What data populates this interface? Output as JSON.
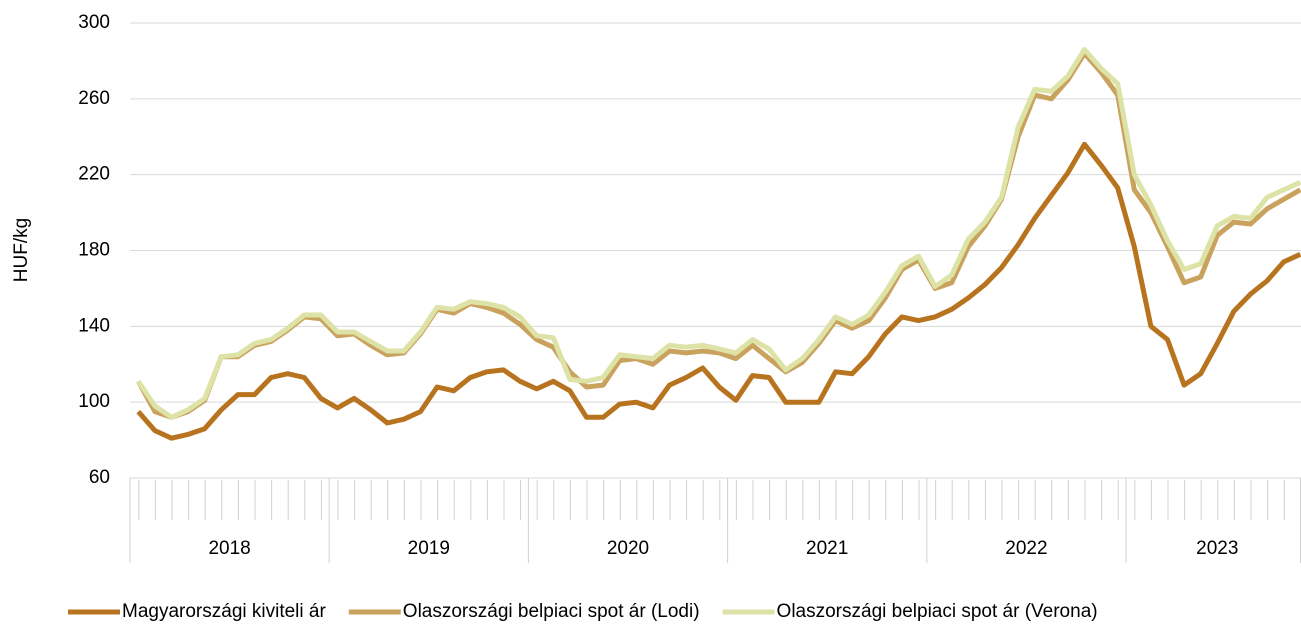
{
  "chart_data": {
    "type": "line",
    "y_label": "HUF/kg",
    "categories": [
      "2018",
      "2018",
      "2018",
      "2018",
      "2018",
      "2018",
      "2018",
      "2018",
      "2018",
      "2018",
      "2018",
      "2018",
      "2019",
      "2019",
      "2019",
      "2019",
      "2019",
      "2019",
      "2019",
      "2019",
      "2019",
      "2019",
      "2019",
      "2019",
      "2020",
      "2020",
      "2020",
      "2020",
      "2020",
      "2020",
      "2020",
      "2020",
      "2020",
      "2020",
      "2020",
      "2020",
      "2021",
      "2021",
      "2021",
      "2021",
      "2021",
      "2021",
      "2021",
      "2021",
      "2021",
      "2021",
      "2021",
      "2021",
      "2022",
      "2022",
      "2022",
      "2022",
      "2022",
      "2022",
      "2022",
      "2022",
      "2022",
      "2022",
      "2022",
      "2022",
      "2023",
      "2023",
      "2023",
      "2023",
      "2023",
      "2023",
      "2023",
      "2023",
      "2023",
      "2023",
      "2023"
    ],
    "series": [
      {
        "name": "Magyarországi kiviteli ár",
        "color": "#b8731f",
        "values": [
          95,
          85,
          81,
          83,
          86,
          96,
          104,
          104,
          113,
          115,
          113,
          102,
          97,
          102,
          96,
          89,
          91,
          95,
          108,
          106,
          113,
          116,
          117,
          111,
          107,
          111,
          106,
          92,
          92,
          99,
          100,
          97,
          109,
          113,
          118,
          108,
          101,
          114,
          113,
          100,
          100,
          100,
          116,
          115,
          124,
          136,
          145,
          143,
          145,
          149,
          155,
          162,
          171,
          183,
          197,
          209,
          221,
          236,
          225,
          213,
          182,
          140,
          133,
          109,
          115,
          131,
          148,
          157,
          164,
          174,
          178
        ]
      },
      {
        "name": "Olaszországi belpiaci spot ár (Lodi)",
        "color": "#c9a25e",
        "values": [
          111,
          95,
          92,
          95,
          101,
          124,
          124,
          130,
          132,
          138,
          145,
          144,
          135,
          136,
          130,
          125,
          126,
          136,
          149,
          147,
          152,
          150,
          147,
          141,
          133,
          129,
          116,
          108,
          109,
          122,
          123,
          120,
          127,
          126,
          127,
          126,
          123,
          130,
          123,
          116,
          121,
          131,
          143,
          139,
          143,
          155,
          170,
          175,
          160,
          163,
          182,
          193,
          207,
          240,
          262,
          260,
          270,
          284,
          274,
          262,
          212,
          200,
          182,
          163,
          166,
          188,
          195,
          194,
          202,
          207,
          212
        ]
      },
      {
        "name": "Olaszországi belpiaci spot ár (Verona)",
        "color": "#dde2a6",
        "values": [
          111,
          98,
          92,
          96,
          102,
          124,
          125,
          131,
          133,
          139,
          146,
          146,
          137,
          137,
          132,
          127,
          127,
          137,
          150,
          149,
          153,
          152,
          150,
          145,
          135,
          134,
          112,
          111,
          113,
          125,
          124,
          123,
          130,
          129,
          130,
          128,
          126,
          133,
          128,
          117,
          123,
          133,
          145,
          141,
          146,
          158,
          172,
          177,
          161,
          167,
          186,
          195,
          208,
          245,
          265,
          264,
          272,
          286,
          276,
          268,
          220,
          204,
          185,
          170,
          173,
          193,
          198,
          197,
          208,
          212,
          216
        ]
      }
    ],
    "ylim": [
      60,
      300
    ],
    "yticks": [
      60,
      100,
      140,
      180,
      220,
      260,
      300
    ],
    "grid": true
  }
}
